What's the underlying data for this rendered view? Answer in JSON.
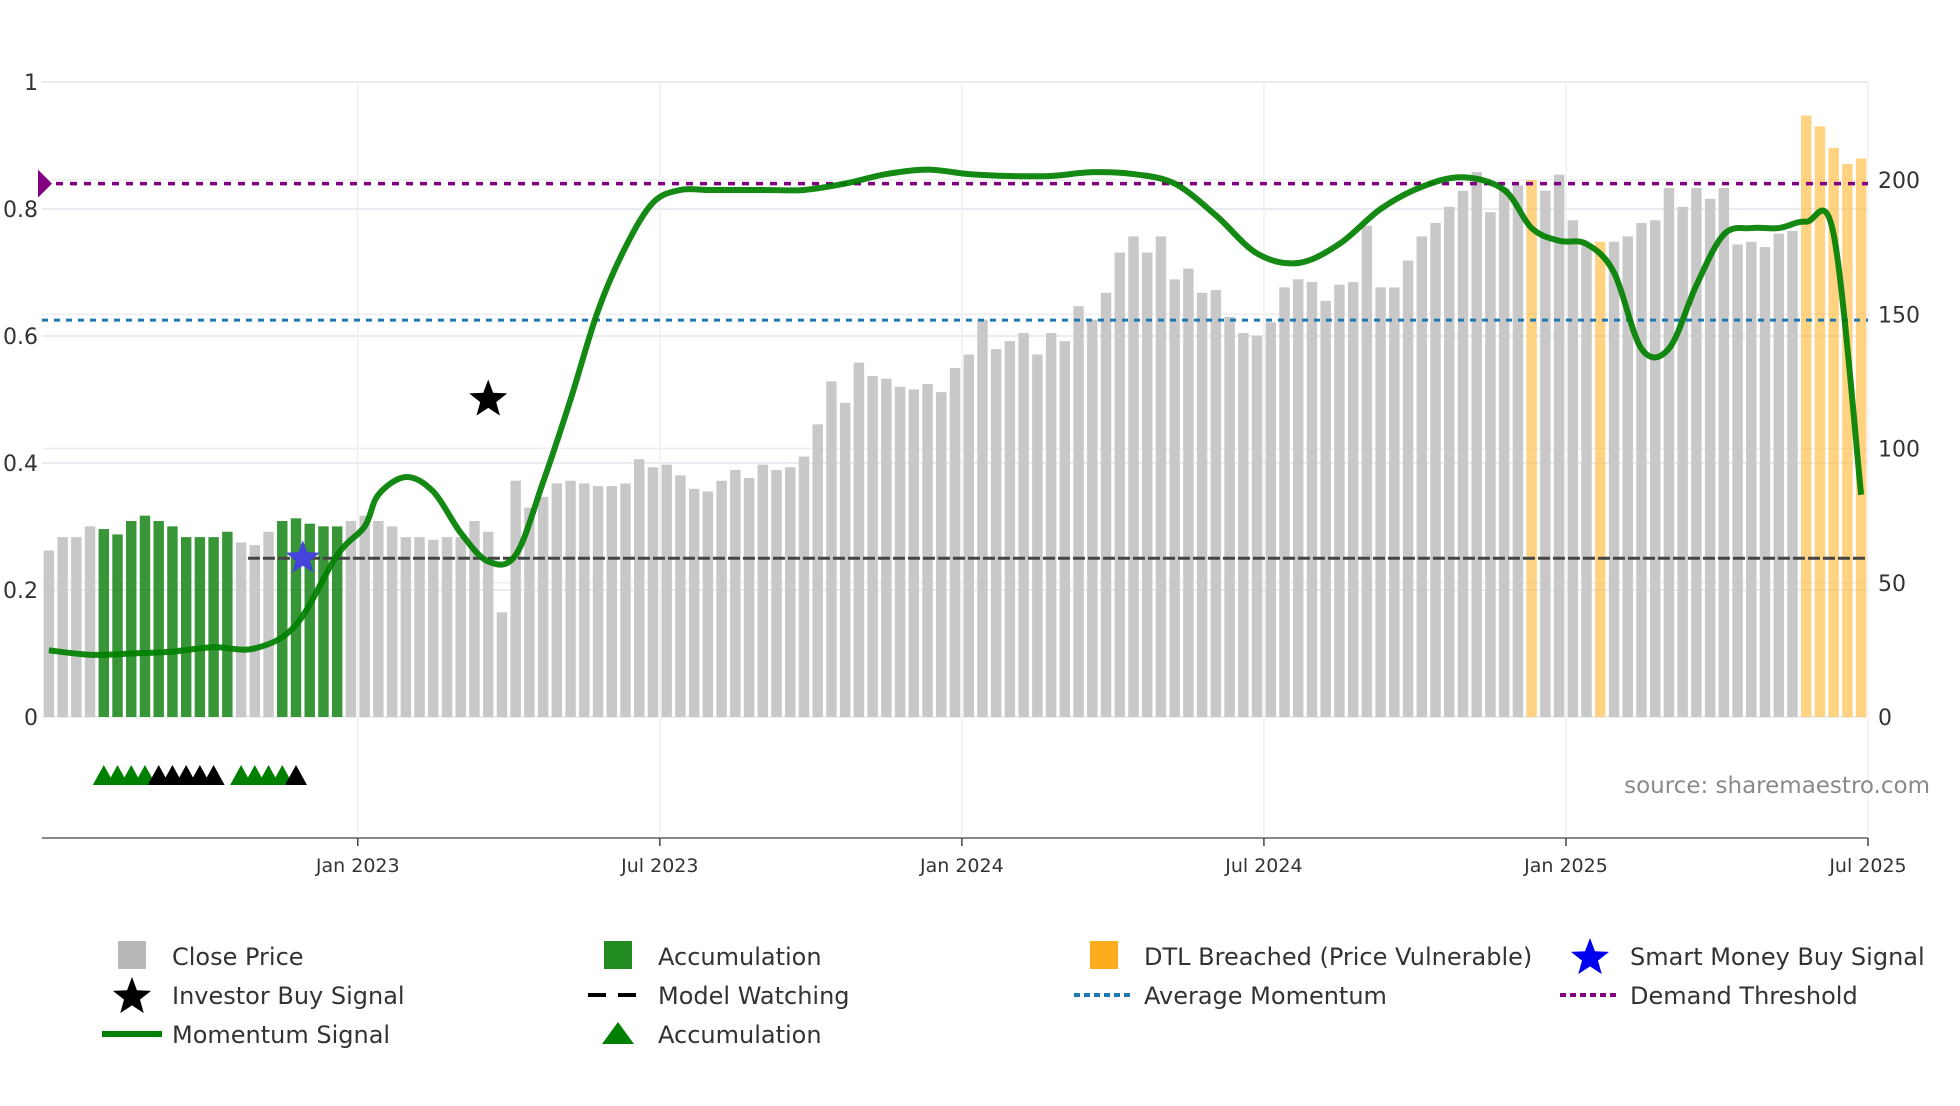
{
  "chart_data": {
    "type": "bar",
    "title": "",
    "xlabel": "",
    "ylabel_left": "",
    "ylabel_right": "",
    "ylim_left": [
      0,
      1
    ],
    "ylim_right": [
      0,
      200
    ],
    "grid": true,
    "left_ticks": [
      "0",
      "0.2",
      "0.4",
      "0.6",
      "0.8",
      "1"
    ],
    "left_tick_values": [
      0,
      0.2,
      0.4,
      0.6,
      0.8,
      1
    ],
    "right_ticks": [
      "0",
      "50",
      "100",
      "150",
      "200"
    ],
    "right_tick_values": [
      0,
      50,
      100,
      150,
      200
    ],
    "x_ticks": [
      "Jan 2023",
      "Jul 2023",
      "Jan 2024",
      "Jul 2024",
      "Jan 2025",
      "Jul 2025"
    ],
    "x_tick_positions": [
      23,
      45,
      67,
      89,
      111,
      133
    ],
    "bar_count": 133,
    "close_price": [
      62,
      67,
      67,
      71,
      70,
      68,
      73,
      75,
      73,
      71,
      67,
      67,
      67,
      69,
      65,
      64,
      69,
      73,
      74,
      72,
      71,
      71,
      73,
      75,
      73,
      71,
      67,
      67,
      66,
      67,
      67,
      73,
      69,
      39,
      88,
      78,
      82,
      87,
      88,
      87,
      86,
      86,
      87,
      96,
      93,
      94,
      90,
      85,
      84,
      88,
      92,
      89,
      94,
      92,
      93,
      97,
      109,
      125,
      117,
      132,
      127,
      126,
      123,
      122,
      124,
      121,
      130,
      135,
      148,
      137,
      140,
      143,
      135,
      143,
      140,
      153,
      148,
      158,
      173,
      179,
      173,
      179,
      163,
      167,
      158,
      159,
      149,
      143,
      142,
      147,
      160,
      163,
      162,
      155,
      161,
      162,
      183,
      160,
      160,
      170,
      179,
      184,
      190,
      196,
      203,
      188,
      197,
      198,
      200,
      196,
      202,
      185,
      176,
      177,
      177,
      179,
      184,
      185,
      197,
      190,
      197,
      193,
      197,
      176,
      177,
      175,
      180,
      181,
      224,
      220,
      212,
      206,
      208
    ],
    "series": [
      {
        "name": "Close Price",
        "type": "bar",
        "color": "#bbbbbb"
      },
      {
        "name": "Accumulation",
        "type": "bar-highlight",
        "color": "#228b22",
        "indices": [
          4,
          5,
          6,
          7,
          8,
          9,
          10,
          11,
          12,
          13,
          17,
          18,
          19,
          20,
          21
        ]
      },
      {
        "name": "DTL Breached (Price Vulnerable)",
        "type": "bar-highlight",
        "color": "#ffa500",
        "indices": [
          108,
          113,
          128,
          129,
          130,
          131,
          132
        ]
      },
      {
        "name": "Momentum Signal",
        "type": "line",
        "color": "#008000",
        "x": [
          0,
          3,
          6,
          9,
          12,
          15,
          18,
          21,
          23,
          24,
          26,
          28,
          30,
          32,
          34,
          36,
          38,
          40,
          42,
          44,
          46,
          48,
          50,
          52,
          55,
          58,
          61,
          64,
          67,
          70,
          73,
          76,
          79,
          82,
          85,
          88,
          91,
          94,
          97,
          100,
          103,
          106,
          108,
          110,
          112,
          114,
          116,
          118,
          120,
          122,
          124,
          126,
          128,
          130,
          132
        ],
        "values": [
          0.105,
          0.098,
          0.1,
          0.103,
          0.11,
          0.108,
          0.145,
          0.255,
          0.3,
          0.35,
          0.378,
          0.355,
          0.29,
          0.245,
          0.255,
          0.37,
          0.5,
          0.64,
          0.74,
          0.81,
          0.83,
          0.83,
          0.83,
          0.83,
          0.83,
          0.84,
          0.855,
          0.862,
          0.855,
          0.852,
          0.852,
          0.858,
          0.855,
          0.84,
          0.79,
          0.73,
          0.715,
          0.745,
          0.8,
          0.835,
          0.85,
          0.83,
          0.77,
          0.75,
          0.745,
          0.7,
          0.58,
          0.58,
          0.68,
          0.76,
          0.77,
          0.77,
          0.78,
          0.76,
          0.35
        ]
      },
      {
        "name": "Model Watching",
        "type": "hline",
        "color": "#444444",
        "value": 0.25,
        "x_start": 14.5
      },
      {
        "name": "Average Momentum",
        "type": "hline",
        "color": "#1f77b4",
        "value": 0.625
      },
      {
        "name": "Demand Threshold",
        "type": "hline",
        "color": "#800080",
        "value": 0.84
      },
      {
        "name": "Investor Buy Signal",
        "type": "marker",
        "marker": "star",
        "color": "#000000",
        "x": 32,
        "value": 0.5
      },
      {
        "name": "Smart Money Buy Signal",
        "type": "marker",
        "marker": "star",
        "color": "#3333cc",
        "x": 18.5,
        "value": 0.25
      },
      {
        "name": "Accumulation",
        "type": "marker",
        "marker": "triangle",
        "color": "#008000",
        "green_x": [
          4,
          5,
          6,
          7,
          14,
          15,
          16,
          17
        ],
        "black_x": [
          8,
          9,
          10,
          11,
          12,
          18
        ]
      }
    ],
    "legend_position": "bottom",
    "annotations": [
      "source: sharemaestro.com"
    ]
  },
  "legend": {
    "items": [
      {
        "label": "Close Price",
        "symbol": "square",
        "color": "#b8b8b8"
      },
      {
        "label": "Accumulation",
        "symbol": "square",
        "color": "#228b22"
      },
      {
        "label": "DTL Breached (Price Vulnerable)",
        "symbol": "square",
        "color": "#ffab1f"
      },
      {
        "label": "Smart Money Buy Signal",
        "symbol": "star",
        "color": "#0000ee"
      },
      {
        "label": "Investor Buy Signal",
        "symbol": "star",
        "color": "#000000"
      },
      {
        "label": "Model Watching",
        "symbol": "dash",
        "color": "#000000"
      },
      {
        "label": "Average Momentum",
        "symbol": "dot",
        "color": "#1f77b4"
      },
      {
        "label": "Demand Threshold",
        "symbol": "dot",
        "color": "#800080"
      },
      {
        "label": "Momentum Signal",
        "symbol": "line",
        "color": "#008000"
      },
      {
        "label": "Accumulation",
        "symbol": "triangle",
        "color": "#008000"
      }
    ]
  },
  "source_text": "source: sharemaestro.com"
}
